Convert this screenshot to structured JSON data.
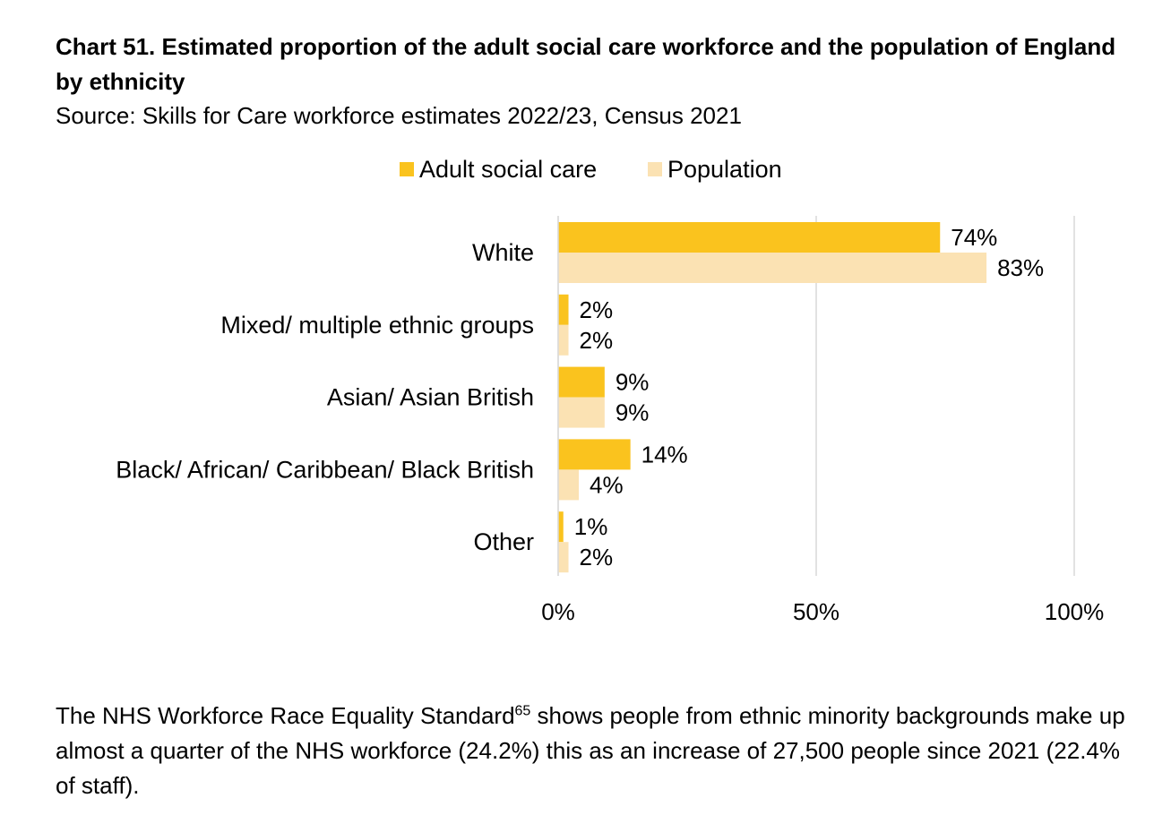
{
  "chart_data": {
    "type": "bar",
    "orientation": "horizontal",
    "title": "Chart 51. Estimated proportion of the adult social care workforce and the population of England by ethnicity",
    "subtitle": "Source: Skills for Care workforce estimates 2022/23, Census 2021",
    "categories": [
      "White",
      "Mixed/ multiple ethnic groups",
      "Asian/ Asian British",
      "Black/ African/ Caribbean/ Black British",
      "Other"
    ],
    "series": [
      {
        "name": "Adult social care",
        "color": "#FAC31E",
        "values": [
          74,
          2,
          9,
          14,
          1
        ],
        "labels": [
          "74%",
          "2%",
          "9%",
          "14%",
          "1%"
        ]
      },
      {
        "name": "Population",
        "color": "#FBE2B3",
        "values": [
          83,
          2,
          9,
          4,
          2
        ],
        "labels": [
          "83%",
          "2%",
          "9%",
          "4%",
          "2%"
        ]
      }
    ],
    "xlim": [
      0,
      100
    ],
    "x_ticks": [
      0,
      50,
      100
    ],
    "x_tick_labels": [
      "0%",
      "50%",
      "100%"
    ],
    "grid": true,
    "legend_position": "top-center"
  },
  "body": {
    "text_before": "The NHS Workforce Race Equality Standard",
    "footnote": "65",
    "text_after": " shows people from ethnic minority backgrounds make up almost a quarter of the NHS workforce (24.2%) this as an increase of 27,500 people since 2021 (22.4% of staff)."
  }
}
